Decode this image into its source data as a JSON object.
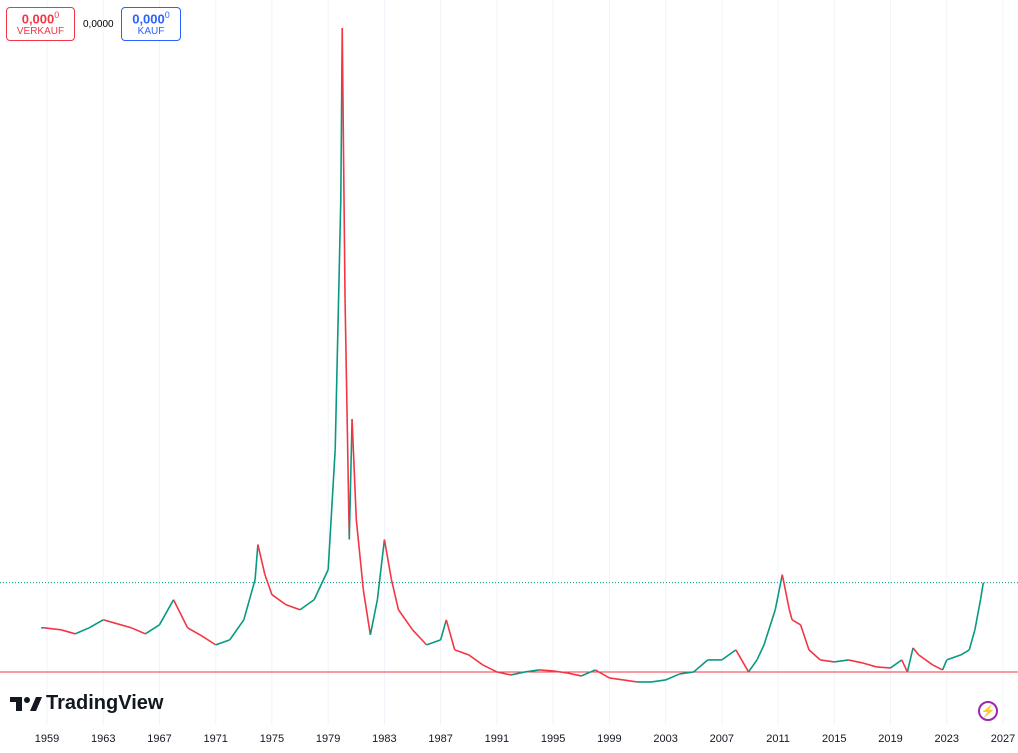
{
  "header": {
    "sell_price": "0,000",
    "sell_price_small": "0",
    "sell_label": "VERKAUF",
    "spread": "0,0000",
    "buy_price": "0,000",
    "buy_price_small": "0",
    "buy_label": "KAUF"
  },
  "brand": "TradingView",
  "chart_data": {
    "type": "line",
    "up_color": "#089981",
    "down_color": "#f23645",
    "x": [
      1958.8,
      1960,
      1961,
      1962,
      1963,
      1964,
      1965,
      1966,
      1967,
      1968,
      1969,
      1970,
      1971,
      1972,
      1973,
      1973.8,
      1974,
      1974.5,
      1975,
      1976,
      1977,
      1978,
      1979,
      1979.5,
      1979.9,
      1980.0,
      1980.2,
      1980.5,
      1980.7,
      1981,
      1981.5,
      1982,
      1982.5,
      1983,
      1983.5,
      1984,
      1985,
      1986,
      1987,
      1987.4,
      1988,
      1989,
      1990,
      1991,
      1992,
      1993,
      1994,
      1995,
      1996,
      1997,
      1998,
      1999,
      2000,
      2001,
      2002,
      2003,
      2004,
      2005,
      2006,
      2007,
      2008,
      2008.9,
      2009.5,
      2010,
      2010.8,
      2011.3,
      2011.8,
      2012,
      2012.6,
      2013.2,
      2014,
      2015,
      2016,
      2017,
      2018,
      2019,
      2019.8,
      2020.2,
      2020.6,
      2021,
      2022,
      2022.7,
      2023,
      2024,
      2024.6,
      2025,
      2025.4,
      2025.6
    ],
    "values": [
      12.4,
      12,
      11.2,
      12.4,
      14,
      13.2,
      12.4,
      11.2,
      13,
      18,
      12.4,
      10.8,
      9,
      10,
      14,
      22,
      29,
      23,
      19,
      17,
      16,
      18,
      24,
      48,
      98,
      132,
      78,
      30,
      54,
      34,
      20,
      11,
      18,
      30,
      22,
      16,
      12,
      9,
      10,
      14,
      8,
      7,
      5,
      3.6,
      3,
      3.6,
      4,
      3.8,
      3.4,
      2.8,
      4,
      2.4,
      2,
      1.6,
      1.6,
      2,
      3.2,
      3.6,
      6,
      6,
      8,
      3.6,
      6,
      9,
      16,
      23,
      16,
      14,
      13,
      8,
      6,
      5.6,
      6,
      5.4,
      4.6,
      4.4,
      6,
      3.6,
      8.4,
      7,
      5,
      4,
      6,
      7,
      8,
      12,
      18,
      21.4
    ],
    "xticks": [
      1959,
      1963,
      1967,
      1971,
      1975,
      1979,
      1983,
      1987,
      1991,
      1995,
      1999,
      2003,
      2007,
      2011,
      2015,
      2019,
      2023,
      2027
    ],
    "horizontal_line": {
      "value": 3.6,
      "color": "#f23645"
    },
    "price_line_color": "#089981"
  }
}
